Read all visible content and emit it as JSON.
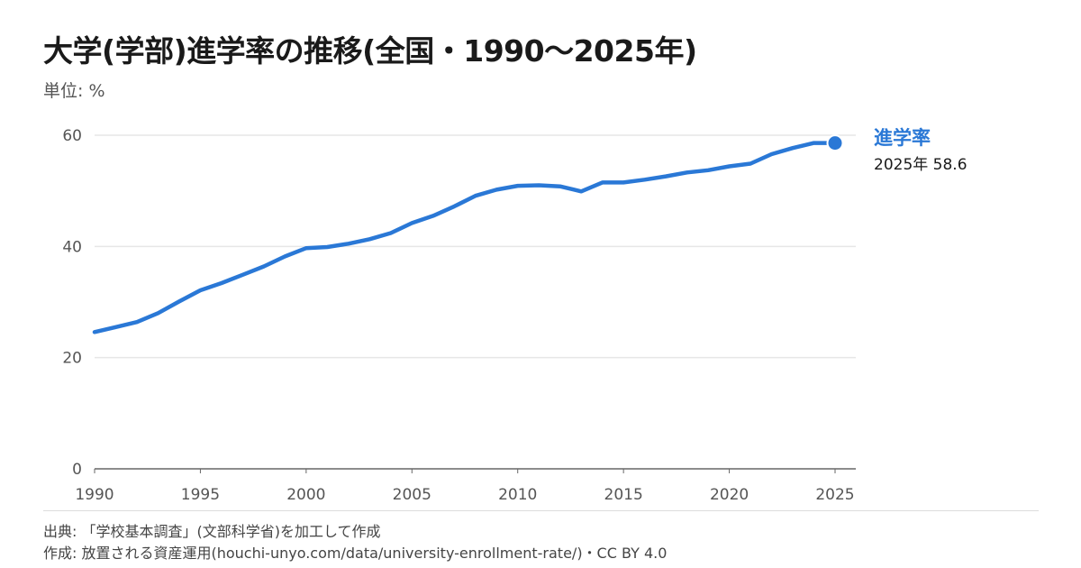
{
  "title": "大学(学部)進学率の推移(全国・1990〜2025年)",
  "unit_label": "単位: %",
  "colors": {
    "line": "#2a78d6",
    "grid": "#e6e6e6",
    "axis": "#555555"
  },
  "chart_data": {
    "type": "line",
    "x": [
      1990,
      1991,
      1992,
      1993,
      1994,
      1995,
      1996,
      1997,
      1998,
      1999,
      2000,
      2001,
      2002,
      2003,
      2004,
      2005,
      2006,
      2007,
      2008,
      2009,
      2010,
      2011,
      2012,
      2013,
      2014,
      2015,
      2016,
      2017,
      2018,
      2019,
      2020,
      2021,
      2022,
      2023,
      2024,
      2025
    ],
    "series": [
      {
        "name": "進学率",
        "values": [
          24.6,
          25.5,
          26.4,
          28.0,
          30.1,
          32.1,
          33.4,
          34.9,
          36.4,
          38.2,
          39.7,
          39.9,
          40.5,
          41.3,
          42.4,
          44.2,
          45.5,
          47.2,
          49.1,
          50.2,
          50.9,
          51.0,
          50.8,
          49.9,
          51.5,
          51.5,
          52.0,
          52.6,
          53.3,
          53.7,
          54.4,
          54.9,
          56.6,
          57.7,
          58.6,
          58.6
        ]
      }
    ],
    "end_label": {
      "series": "進学率",
      "text": "2025年 58.6"
    },
    "x_ticks": [
      "1990",
      "1995",
      "2000",
      "2005",
      "2010",
      "2015",
      "2020",
      "2025"
    ],
    "y_ticks": [
      "0",
      "20",
      "40",
      "60"
    ],
    "xlim": [
      1990,
      2025
    ],
    "ylim": [
      0,
      60
    ],
    "grid": true
  },
  "footer": {
    "source": "出典: 「学校基本調査」(文部科学省)を加工して作成",
    "credit": "作成: 放置される資産運用(houchi-unyo.com/data/university-enrollment-rate/)・CC BY 4.0"
  }
}
